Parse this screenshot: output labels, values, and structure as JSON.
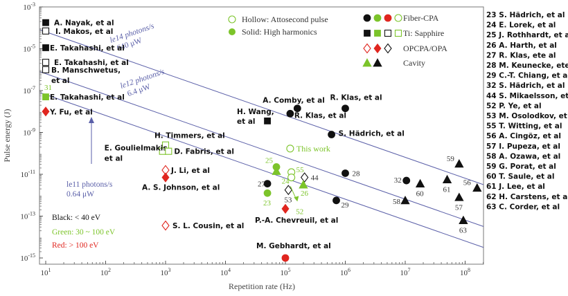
{
  "chart_data": {
    "type": "scatter",
    "title": "",
    "xlabel": "Repetition rate (Hz)",
    "ylabel": "Pulse energy (J)",
    "xscale": "log",
    "yscale": "log",
    "xlim_log10": [
      0.9,
      8.3
    ],
    "ylim_log10": [
      -15.3,
      -3
    ],
    "xticks": [
      {
        "v": 1,
        "base": "10",
        "exp": "1"
      },
      {
        "v": 2,
        "base": "10",
        "exp": "2"
      },
      {
        "v": 3,
        "base": "10",
        "exp": "3"
      },
      {
        "v": 4,
        "base": "10",
        "exp": "4"
      },
      {
        "v": 5,
        "base": "10",
        "exp": "5"
      },
      {
        "v": 6,
        "base": "10",
        "exp": "6"
      },
      {
        "v": 7,
        "base": "10",
        "exp": "7"
      },
      {
        "v": 8,
        "base": "10",
        "exp": "8"
      }
    ],
    "yticks": [
      {
        "v": -3,
        "base": "10",
        "exp": "-3"
      },
      {
        "v": -5,
        "base": "10",
        "exp": "-5"
      },
      {
        "v": -7,
        "base": "10",
        "exp": "-7"
      },
      {
        "v": -9,
        "base": "10",
        "exp": "-9"
      },
      {
        "v": -11,
        "base": "10",
        "exp": "-11"
      },
      {
        "v": -13,
        "base": "10",
        "exp": "-13"
      },
      {
        "v": -15,
        "base": "10",
        "exp": "-15"
      }
    ],
    "colors": {
      "black": "#111111",
      "green": "#7cc42a",
      "red": "#e0261f",
      "line": "#5a5fa8",
      "axis": "#555555"
    },
    "photon_lines": [
      {
        "name": "1e14 photons/s",
        "log10_energy_at_10Hz": -4.19,
        "label1": "le14 photons/s",
        "label2": "640 μW"
      },
      {
        "name": "1e12 photons/s",
        "log10_energy_at_10Hz": -6.19,
        "label1": "le12 photons/s",
        "label2": "6.4 μW"
      },
      {
        "name": "1e11 photons/s",
        "log10_energy_at_10Hz": -7.19,
        "label1": "le11 photons/s",
        "label2": "0.64 μW"
      }
    ],
    "points": [
      {
        "label": "A. Nayak, et al",
        "logf": 1.0,
        "logE": -3.75,
        "shape": "square",
        "color": "black",
        "fill": true
      },
      {
        "label": "I. Makos, et al",
        "logf": 1.0,
        "logE": -4.15,
        "shape": "square",
        "color": "black",
        "fill": false
      },
      {
        "label": "E. Takahashi, et al",
        "logf": 1.0,
        "logE": -4.95,
        "shape": "square",
        "color": "black",
        "fill": true
      },
      {
        "label": "E. Takahashi, et al",
        "logf": 1.0,
        "logE": -5.65,
        "shape": "square",
        "color": "black",
        "fill": false
      },
      {
        "label": "B. Manschwetus, et al",
        "logf": 1.0,
        "logE": -6.0,
        "shape": "square",
        "color": "black",
        "fill": false
      },
      {
        "label": "E. Takahashi, et al",
        "logf": 1.0,
        "logE": -7.3,
        "shape": "square",
        "color": "green",
        "fill": true,
        "num": "31"
      },
      {
        "label": "Y. Fu, et al",
        "logf": 1.0,
        "logE": -8.0,
        "shape": "diamond",
        "color": "red",
        "fill": true
      },
      {
        "label": "H. Timmers, et al",
        "logf": 3.0,
        "logE": -9.6,
        "shape": "square",
        "color": "green",
        "fill": false
      },
      {
        "label": "E. Goulielmakis, et al",
        "logf": 2.95,
        "logE": -9.9,
        "shape": "square",
        "color": "green",
        "fill": false
      },
      {
        "label": "D. Fabris, et al",
        "logf": 3.05,
        "logE": -9.9,
        "shape": "square",
        "color": "green",
        "fill": false
      },
      {
        "label": "J. Li, et al",
        "logf": 3.0,
        "logE": -10.8,
        "shape": "diamond",
        "color": "red",
        "fill": false
      },
      {
        "label": "A. S. Johnson, et al",
        "logf": 3.0,
        "logE": -11.15,
        "shape": "diamond",
        "color": "red",
        "fill": true
      },
      {
        "label": "S. L. Cousin, et al",
        "logf": 3.0,
        "logE": -13.45,
        "shape": "diamond",
        "color": "red",
        "fill": false
      },
      {
        "label": "H. Wang, et al",
        "logf": 4.7,
        "logE": -8.45,
        "shape": "square",
        "color": "black",
        "fill": true
      },
      {
        "label": "A. Comby, et al",
        "logf": 5.2,
        "logE": -7.85,
        "shape": "circle",
        "color": "black",
        "fill": true
      },
      {
        "label": "R. Klas, et al",
        "logf": 5.08,
        "logE": -8.1,
        "shape": "circle",
        "color": "black",
        "fill": true
      },
      {
        "label": "R. Klas, et al",
        "logf": 6.0,
        "logE": -7.85,
        "shape": "circle",
        "color": "black",
        "fill": true
      },
      {
        "label": "S. Hädrich, et al",
        "logf": 5.77,
        "logE": -9.1,
        "shape": "circle",
        "color": "black",
        "fill": true
      },
      {
        "label": "This work",
        "logf": 5.08,
        "logE": -9.77,
        "shape": "circle",
        "color": "green",
        "fill": false
      },
      {
        "label": "",
        "logf": 4.7,
        "logE": -11.45,
        "shape": "circle",
        "color": "black",
        "fill": true,
        "num": "27"
      },
      {
        "label": "",
        "logf": 4.7,
        "logE": -11.9,
        "shape": "circle",
        "color": "green",
        "fill": true,
        "num": "23"
      },
      {
        "label": "",
        "logf": 4.85,
        "logE": -10.65,
        "shape": "circle",
        "color": "green",
        "fill": true,
        "num": "25"
      },
      {
        "label": "",
        "logf": 4.85,
        "logE": -10.85,
        "shape": "triangle",
        "color": "green",
        "fill": true
      },
      {
        "label": "",
        "logf": 5.1,
        "logE": -10.9,
        "shape": "circle",
        "color": "green",
        "fill": false,
        "num": "55"
      },
      {
        "label": "",
        "logf": 5.1,
        "logE": -11.15,
        "shape": "circle",
        "color": "green",
        "fill": false,
        "num": "24"
      },
      {
        "label": "",
        "logf": 5.32,
        "logE": -11.15,
        "shape": "diamond",
        "color": "black",
        "fill": false,
        "num": "44"
      },
      {
        "label": "",
        "logf": 5.3,
        "logE": -11.5,
        "shape": "triangle",
        "color": "green",
        "fill": true,
        "num": "26"
      },
      {
        "label": "",
        "logf": 5.05,
        "logE": -11.75,
        "shape": "diamond",
        "color": "black",
        "fill": false,
        "num": "53"
      },
      {
        "label": "",
        "logf": 5.2,
        "logE": -12.3,
        "shape": "arrow",
        "color": "green",
        "fill": true,
        "num": "52"
      },
      {
        "label": "P.-A. Chevreuil, et al",
        "logf": 5.0,
        "logE": -12.65,
        "shape": "diamond",
        "color": "red",
        "fill": true
      },
      {
        "label": "M. Gebhardt, et al",
        "logf": 5.0,
        "logE": -15.0,
        "shape": "circle",
        "color": "red",
        "fill": true
      },
      {
        "label": "",
        "logf": 6.0,
        "logE": -10.95,
        "shape": "circle",
        "color": "black",
        "fill": true,
        "num": "28"
      },
      {
        "label": "",
        "logf": 5.85,
        "logE": -12.25,
        "shape": "circle",
        "color": "black",
        "fill": true,
        "num": "29"
      },
      {
        "label": "",
        "logf": 7.02,
        "logE": -11.3,
        "shape": "circle",
        "color": "black",
        "fill": true,
        "num": "32"
      },
      {
        "label": "",
        "logf": 7.0,
        "logE": -12.25,
        "shape": "triangle",
        "color": "black",
        "fill": true,
        "num": "58"
      },
      {
        "label": "",
        "logf": 7.25,
        "logE": -11.45,
        "shape": "triangle",
        "color": "black",
        "fill": true,
        "num": "60"
      },
      {
        "label": "",
        "logf": 7.9,
        "logE": -10.5,
        "shape": "triangle",
        "color": "black",
        "fill": true,
        "num": "59"
      },
      {
        "label": "",
        "logf": 7.7,
        "logE": -11.25,
        "shape": "triangle",
        "color": "black",
        "fill": true,
        "num": "61"
      },
      {
        "label": "",
        "logf": 7.9,
        "logE": -12.1,
        "shape": "triangle",
        "color": "black",
        "fill": true,
        "num": "57"
      },
      {
        "label": "",
        "logf": 8.2,
        "logE": -11.65,
        "shape": "triangle",
        "color": "black",
        "fill": true,
        "num": "56"
      },
      {
        "label": "",
        "logf": 7.97,
        "logE": -13.2,
        "shape": "triangle",
        "color": "black",
        "fill": true,
        "num": "63"
      }
    ],
    "legend_fill": {
      "hollow": "Hollow: Attosecond pulse",
      "solid": "Solid: High harmonics"
    },
    "legend_source": [
      {
        "label": "Fiber-CPA",
        "shape": "circle"
      },
      {
        "label": "Ti: Sapphire",
        "shape": "square"
      },
      {
        "label": "OPCPA/OPA",
        "shape": "diamond"
      },
      {
        "label": "Cavity",
        "shape": "triangle"
      }
    ],
    "legend_color": [
      {
        "label": "Black: < 40 eV",
        "color": "black"
      },
      {
        "label": "Green: 30 ~ 100 eV",
        "color": "green"
      },
      {
        "label": "Red: > 100 eV",
        "color": "red"
      }
    ],
    "references": [
      "23 S. Hädrich, et al",
      "24 E. Lorek, et al",
      "25 J. Rothhardt, et al",
      "26 A. Harth, et al",
      "27 R. Klas, ete al",
      "28 M. Keunecke, ete al",
      "29 C.-T. Chiang, et al",
      "32 S. Hädrich, et al",
      "44 S. Mikaelsson, et al",
      "52  P. Ye, et al",
      "53 M. Osolodkov, et al",
      "55 T. Witting, et al",
      "56 A. Cingöz, et al",
      "57 I. Pupeza, et al",
      "58 A. Ozawa, et al",
      "59 G. Porat, et al",
      "60 T. Saule, et al",
      "61 J. Lee, et al",
      "62 H. Carstens, et al",
      "63 C. Corder, et al"
    ]
  }
}
